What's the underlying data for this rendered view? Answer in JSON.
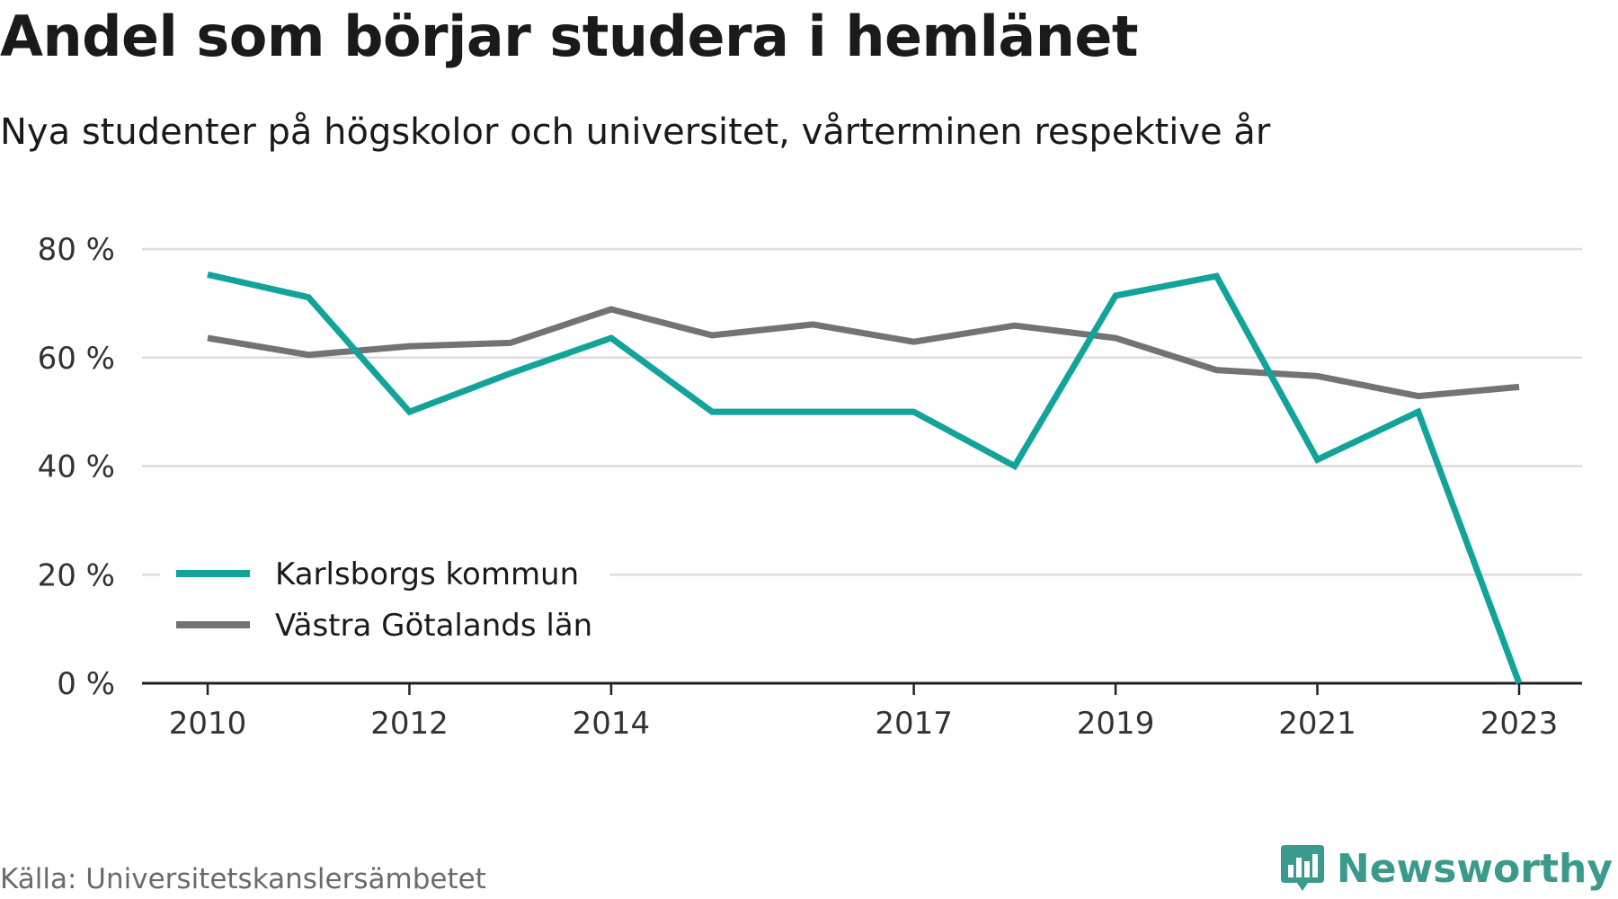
{
  "title": "Andel som börjar studera i hemlänet",
  "subtitle": "Nya studenter på högskolor och universitet, vårterminen respektive år",
  "source": "Källa: Universitetskanslersämbetet",
  "brand": "Newsworthy",
  "colors": {
    "series1": "#12a39a",
    "series2": "#737277",
    "grid": "#dcdcdc",
    "axis": "#222222",
    "brand": "#3a9a8c"
  },
  "chart_data": {
    "type": "line",
    "x": [
      2010,
      2011,
      2012,
      2013,
      2014,
      2015,
      2016,
      2017,
      2018,
      2019,
      2020,
      2021,
      2022,
      2023
    ],
    "xticks": [
      2010,
      2012,
      2014,
      2017,
      2019,
      2021,
      2023
    ],
    "yticks": [
      "80 %",
      "60 %",
      "40 %",
      "20 %",
      "0 %"
    ],
    "ytick_values": [
      80,
      60,
      40,
      20,
      0
    ],
    "ylim": [
      0,
      80
    ],
    "grid": true,
    "legend_position": "bottom-left",
    "series": [
      {
        "name": "Karlsborgs kommun",
        "color": "#12a39a",
        "values": [
          75.3,
          71.1,
          50.0,
          57.1,
          63.6,
          50.0,
          50.0,
          50.0,
          40.0,
          71.4,
          75.0,
          41.2,
          50.0,
          0.0
        ]
      },
      {
        "name": "Västra Götalands län",
        "color": "#737277",
        "values": [
          63.6,
          60.5,
          62.1,
          62.7,
          68.9,
          64.1,
          66.1,
          62.9,
          65.9,
          63.6,
          57.7,
          56.6,
          52.9,
          54.6
        ]
      }
    ]
  }
}
